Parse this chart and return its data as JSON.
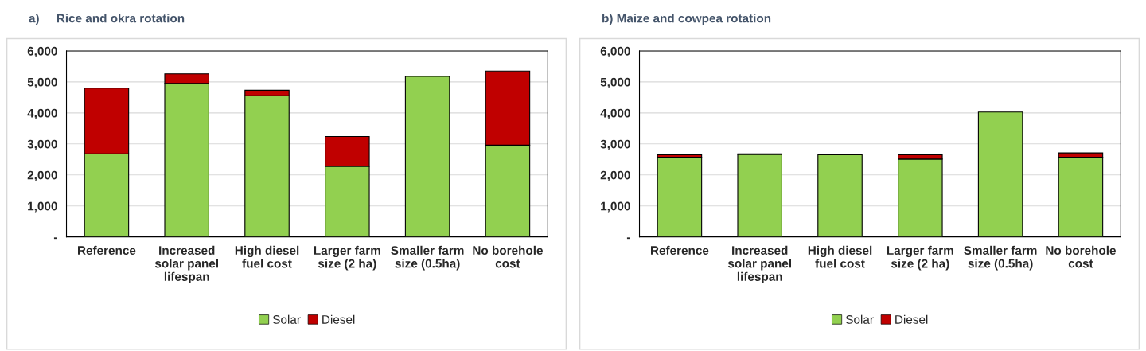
{
  "chart_data": [
    {
      "type": "bar",
      "title": "a)     Rice and okra rotation",
      "stacked": true,
      "categories": [
        "Reference",
        "Increased solar panel lifespan",
        "High diesel fuel cost",
        "Larger farm size (2 ha)",
        "Smaller farm size (0.5ha)",
        "No borehole cost"
      ],
      "series": [
        {
          "name": "Solar",
          "color": "#92d050",
          "values": [
            2680,
            4950,
            4550,
            2280,
            5180,
            2960
          ]
        },
        {
          "name": "Diesel",
          "color": "#c00000",
          "values": [
            2120,
            310,
            180,
            960,
            null,
            2390
          ]
        }
      ],
      "ylim": [
        0,
        6000
      ],
      "yticks": [
        {
          "value": 0,
          "label": "-"
        },
        {
          "value": 1000,
          "label": "1,000"
        },
        {
          "value": 2000,
          "label": "2,000"
        },
        {
          "value": 3000,
          "label": "3,000"
        },
        {
          "value": 4000,
          "label": "4,000"
        },
        {
          "value": 5000,
          "label": "5,000"
        },
        {
          "value": 6000,
          "label": "6,000"
        }
      ],
      "grid": "y",
      "legend": "bottom"
    },
    {
      "type": "bar",
      "title": "b) Maize and cowpea rotation",
      "stacked": true,
      "categories": [
        "Reference",
        "Increased solar panel lifespan",
        "High diesel fuel cost",
        "Larger farm size (2 ha)",
        "Smaller farm size (0.5ha)",
        "No borehole cost"
      ],
      "series": [
        {
          "name": "Solar",
          "color": "#92d050",
          "values": [
            2570,
            2660,
            2650,
            2510,
            4030,
            2570
          ]
        },
        {
          "name": "Diesel",
          "color": "#c00000",
          "values": [
            80,
            20,
            null,
            140,
            null,
            140
          ]
        }
      ],
      "ylim": [
        0,
        6000
      ],
      "yticks": [
        {
          "value": 0,
          "label": "-"
        },
        {
          "value": 1000,
          "label": "1,000"
        },
        {
          "value": 2000,
          "label": "2,000"
        },
        {
          "value": 3000,
          "label": "3,000"
        },
        {
          "value": 4000,
          "label": "4,000"
        },
        {
          "value": 5000,
          "label": "5,000"
        },
        {
          "value": 6000,
          "label": "6,000"
        }
      ],
      "grid": "y",
      "legend": "bottom"
    }
  ]
}
